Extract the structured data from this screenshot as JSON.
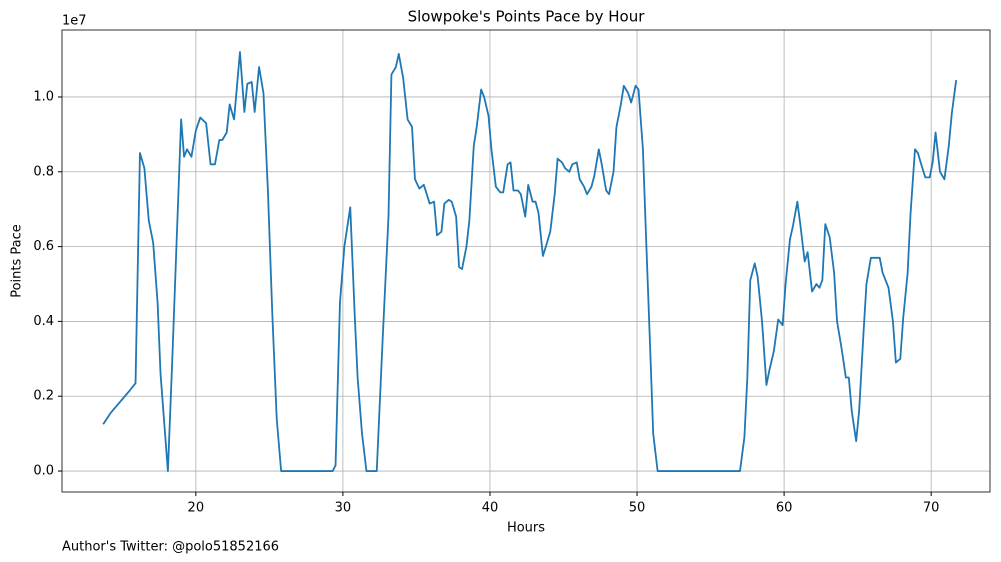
{
  "chart_data": {
    "type": "line",
    "title": "Slowpoke's Points Pace by Hour",
    "x_label": "Hours",
    "y_label": "Points Pace",
    "y_offset_label": "1e7",
    "footnote": "Author's Twitter: @polo51852166",
    "xlim": [
      10.9,
      74.0
    ],
    "ylim": [
      -0.056,
      1.179
    ],
    "xticks": [
      20,
      30,
      40,
      50,
      60,
      70
    ],
    "yticks": [
      {
        "value": 0,
        "label": "0.0"
      },
      0.2,
      0.4,
      0.6,
      0.8,
      {
        "value": 1,
        "label": "1.0"
      }
    ],
    "grid": true,
    "x": [
      13.7,
      14.2,
      15.5,
      15.9,
      16.2,
      16.5,
      16.8,
      17.1,
      17.4,
      17.6,
      18.1,
      18.4,
      18.7,
      19.0,
      19.2,
      19.4,
      19.7,
      20.0,
      20.3,
      20.7,
      21.0,
      21.3,
      21.6,
      21.8,
      22.1,
      22.3,
      22.6,
      22.8,
      23.0,
      23.3,
      23.5,
      23.8,
      24.0,
      24.3,
      24.6,
      24.9,
      25.2,
      25.5,
      25.8,
      26.2,
      29.3,
      29.5,
      29.8,
      30.1,
      30.5,
      30.8,
      31.0,
      31.3,
      31.6,
      32.3,
      32.7,
      33.1,
      33.3,
      33.6,
      33.8,
      34.1,
      34.4,
      34.7,
      34.9,
      35.2,
      35.5,
      35.9,
      36.2,
      36.4,
      36.7,
      36.9,
      37.2,
      37.4,
      37.7,
      37.9,
      38.1,
      38.4,
      38.6,
      38.9,
      39.1,
      39.4,
      39.6,
      39.9,
      40.1,
      40.4,
      40.7,
      40.9,
      41.2,
      41.4,
      41.6,
      41.9,
      42.1,
      42.4,
      42.6,
      42.9,
      43.1,
      43.3,
      43.6,
      43.8,
      44.1,
      44.4,
      44.6,
      44.9,
      45.1,
      45.4,
      45.6,
      45.9,
      46.1,
      46.4,
      46.6,
      46.9,
      47.1,
      47.4,
      47.6,
      47.9,
      48.1,
      48.4,
      48.6,
      48.9,
      49.1,
      49.4,
      49.6,
      49.9,
      50.1,
      50.4,
      50.6,
      50.9,
      51.1,
      51.4,
      57.0,
      57.3,
      57.5,
      57.7,
      58.0,
      58.2,
      58.5,
      58.8,
      59.0,
      59.3,
      59.6,
      59.9,
      60.1,
      60.4,
      60.6,
      60.9,
      61.1,
      61.4,
      61.6,
      61.9,
      62.2,
      62.4,
      62.6,
      62.8,
      63.1,
      63.4,
      63.6,
      63.9,
      64.2,
      64.4,
      64.6,
      64.9,
      65.1,
      65.4,
      65.6,
      65.9,
      66.1,
      66.5,
      66.7,
      67.1,
      67.4,
      67.6,
      67.9,
      68.1,
      68.4,
      68.6,
      68.9,
      69.1,
      69.4,
      69.6,
      69.9,
      70.1,
      70.3,
      70.6,
      70.9,
      71.2,
      71.4,
      71.7
    ],
    "series": [
      {
        "name": "Points Pace",
        "color": "#1f77b4",
        "values": [
          0.125,
          0.155,
          0.215,
          0.235,
          0.85,
          0.81,
          0.67,
          0.61,
          0.45,
          0.26,
          0.0,
          0.3,
          0.62,
          0.94,
          0.84,
          0.86,
          0.84,
          0.91,
          0.945,
          0.93,
          0.82,
          0.82,
          0.885,
          0.885,
          0.905,
          0.98,
          0.94,
          1.03,
          1.12,
          0.96,
          1.035,
          1.04,
          0.96,
          1.08,
          1.01,
          0.75,
          0.42,
          0.14,
          0.0,
          0.0,
          0.0,
          0.015,
          0.45,
          0.6,
          0.705,
          0.42,
          0.25,
          0.1,
          0.0,
          0.0,
          0.35,
          0.68,
          1.06,
          1.08,
          1.115,
          1.05,
          0.94,
          0.92,
          0.78,
          0.755,
          0.765,
          0.715,
          0.72,
          0.63,
          0.64,
          0.715,
          0.725,
          0.72,
          0.68,
          0.545,
          0.54,
          0.6,
          0.67,
          0.87,
          0.92,
          1.02,
          1.0,
          0.95,
          0.86,
          0.76,
          0.745,
          0.745,
          0.82,
          0.825,
          0.75,
          0.75,
          0.74,
          0.68,
          0.765,
          0.72,
          0.72,
          0.69,
          0.575,
          0.6,
          0.64,
          0.74,
          0.835,
          0.825,
          0.81,
          0.8,
          0.82,
          0.825,
          0.78,
          0.76,
          0.74,
          0.76,
          0.79,
          0.86,
          0.82,
          0.75,
          0.74,
          0.8,
          0.92,
          0.98,
          1.03,
          1.01,
          0.985,
          1.03,
          1.02,
          0.86,
          0.64,
          0.32,
          0.1,
          0.0,
          0.0,
          0.09,
          0.25,
          0.51,
          0.555,
          0.52,
          0.4,
          0.23,
          0.27,
          0.32,
          0.405,
          0.39,
          0.5,
          0.62,
          0.655,
          0.72,
          0.66,
          0.56,
          0.585,
          0.48,
          0.5,
          0.49,
          0.51,
          0.66,
          0.625,
          0.53,
          0.4,
          0.33,
          0.25,
          0.25,
          0.16,
          0.08,
          0.16,
          0.37,
          0.5,
          0.57,
          0.57,
          0.57,
          0.53,
          0.49,
          0.4,
          0.29,
          0.3,
          0.41,
          0.53,
          0.69,
          0.86,
          0.85,
          0.81,
          0.785,
          0.785,
          0.825,
          0.905,
          0.8,
          0.78,
          0.87,
          0.955,
          1.045
        ]
      }
    ]
  }
}
